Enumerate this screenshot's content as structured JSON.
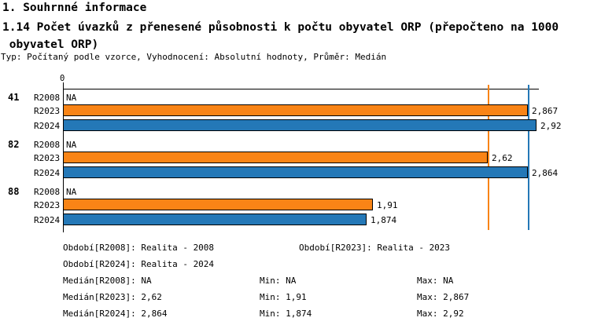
{
  "header": {
    "title": "1. Souhrnné informace",
    "subtitle": "1.14 Počet úvazků z přenesené působnosti k počtu obyvatel ORP (přepočteno na 1000\n obyvatel ORP)",
    "meta": "Typ: Počítaný podle vzorce, Vyhodnocení: Absolutní hodnoty, Průměr: Medián"
  },
  "chart_data": {
    "type": "bar",
    "orientation": "horizontal",
    "title": "1.14 Počet úvazků z přenesené působnosti k počtu obyvatel ORP (přepočteno na 1000 obyvatel ORP)",
    "axis": {
      "zero_label": "0",
      "min": 0,
      "max_shown": 2.92,
      "grid": false
    },
    "series_colors": {
      "R2008": "#ffffff",
      "R2023": "#f98416",
      "R2024": "#2478b7"
    },
    "groups": [
      {
        "name": "41",
        "rows": [
          {
            "series": "R2008",
            "value": null,
            "label": "NA"
          },
          {
            "series": "R2023",
            "value": 2.867,
            "label": "2,867"
          },
          {
            "series": "R2024",
            "value": 2.92,
            "label": "2,92"
          }
        ]
      },
      {
        "name": "82",
        "rows": [
          {
            "series": "R2008",
            "value": null,
            "label": "NA"
          },
          {
            "series": "R2023",
            "value": 2.62,
            "label": "2,62"
          },
          {
            "series": "R2024",
            "value": 2.864,
            "label": "2,864"
          }
        ]
      },
      {
        "name": "88",
        "rows": [
          {
            "series": "R2008",
            "value": null,
            "label": "NA"
          },
          {
            "series": "R2023",
            "value": 1.91,
            "label": "1,91"
          },
          {
            "series": "R2024",
            "value": 1.874,
            "label": "1,874"
          }
        ]
      }
    ],
    "median_lines": [
      {
        "series": "R2023",
        "value": 2.62,
        "color": "#f98416"
      },
      {
        "series": "R2024",
        "value": 2.864,
        "color": "#2478b7"
      }
    ],
    "legend_position": "bottom"
  },
  "footer": {
    "period_r2008": "Období[R2008]: Realita - 2008",
    "period_r2023": "Období[R2023]: Realita - 2023",
    "period_r2024": "Období[R2024]: Realita - 2024",
    "stats": [
      {
        "median": "Medián[R2008]: NA",
        "min": "Min: NA",
        "max": "Max: NA"
      },
      {
        "median": "Medián[R2023]: 2,62",
        "min": "Min: 1,91",
        "max": "Max: 2,867"
      },
      {
        "median": "Medián[R2024]: 2,864",
        "min": "Min: 1,874",
        "max": "Max: 2,92"
      }
    ]
  }
}
